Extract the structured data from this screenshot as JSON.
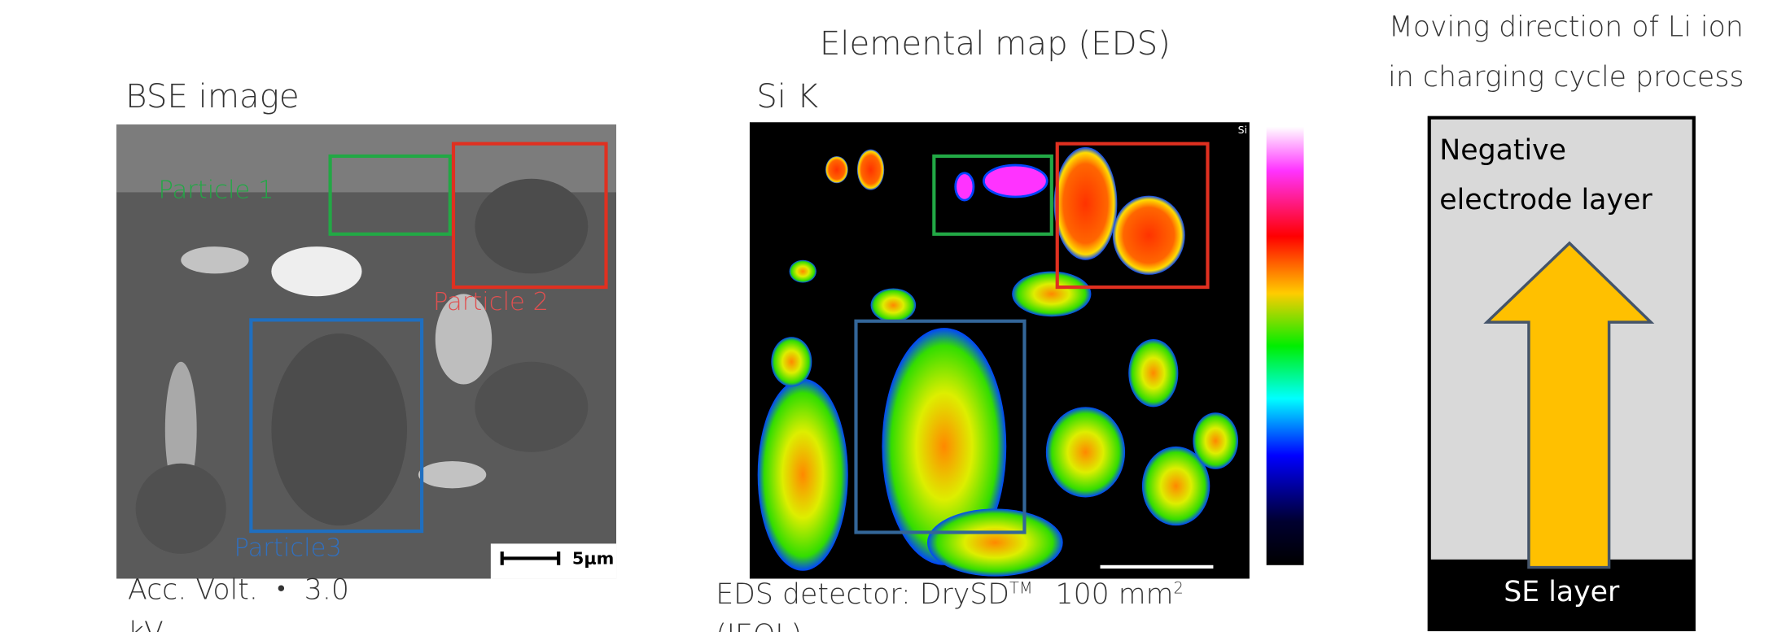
{
  "bse": {
    "title": "BSE image",
    "particles": [
      "Particle 1",
      "Particle 2",
      "Particle3"
    ],
    "scale_bar": "5μm",
    "condition": "Acc. Volt. ・ 3.0",
    "condition_unit": "kV"
  },
  "eds": {
    "heading": "Elemental map (EDS)",
    "title": "Si K",
    "corner_label": "Si",
    "detector": "EDS detector: DrySD",
    "detector_mark": "TM",
    "detector_area": "100 mm",
    "detector_area_exp": "2",
    "maker": "(JEOL)"
  },
  "diagram": {
    "title_line1": "Moving direction of Li ion",
    "title_line2": "in charging cycle process",
    "layer_top_line1": "Negative",
    "layer_top_line2": "electrode layer",
    "layer_bottom": "SE layer"
  }
}
